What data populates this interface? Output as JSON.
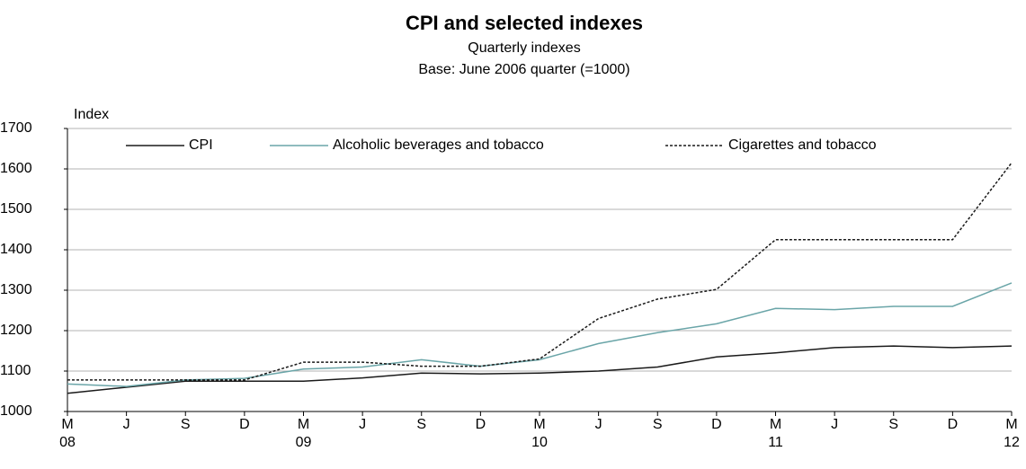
{
  "chart_data": {
    "type": "line",
    "title": "CPI and selected indexes",
    "subtitle": "Quarterly  indexes",
    "subtitle2": "Base: June 2006 quarter (=1000)",
    "y_label": "Index",
    "categories": [
      "M",
      "J",
      "S",
      "D",
      "M",
      "J",
      "S",
      "D",
      "M",
      "J",
      "S",
      "D",
      "M",
      "J",
      "S",
      "D",
      "M"
    ],
    "x_sublabels": [
      "08",
      null,
      null,
      null,
      "09",
      null,
      null,
      null,
      "10",
      null,
      null,
      null,
      "11",
      null,
      null,
      null,
      "12"
    ],
    "series": [
      {
        "name": "CPI",
        "color": "#1a1a1a",
        "dash": "none",
        "values": [
          1045,
          1060,
          1075,
          1075,
          1075,
          1083,
          1095,
          1093,
          1095,
          1100,
          1110,
          1135,
          1145,
          1158,
          1162,
          1158,
          1162
        ]
      },
      {
        "name": "Alcoholic beverages and tobacco",
        "color": "#6aa5a8",
        "dash": "none",
        "values": [
          1068,
          1062,
          1078,
          1082,
          1105,
          1110,
          1128,
          1112,
          1128,
          1168,
          1195,
          1217,
          1255,
          1252,
          1260,
          1260,
          1318
        ]
      },
      {
        "name": "Cigarettes and tobacco",
        "color": "#1a1a1a",
        "dash": "3,2",
        "values": [
          1078,
          1078,
          1078,
          1078,
          1122,
          1122,
          1112,
          1112,
          1130,
          1230,
          1278,
          1302,
          1425,
          1425,
          1425,
          1425,
          1615
        ]
      }
    ],
    "ylim": [
      1000,
      1700
    ],
    "yticks": [
      1000,
      1100,
      1200,
      1300,
      1400,
      1500,
      1600,
      1700
    ],
    "grid": true,
    "legend": "top"
  }
}
